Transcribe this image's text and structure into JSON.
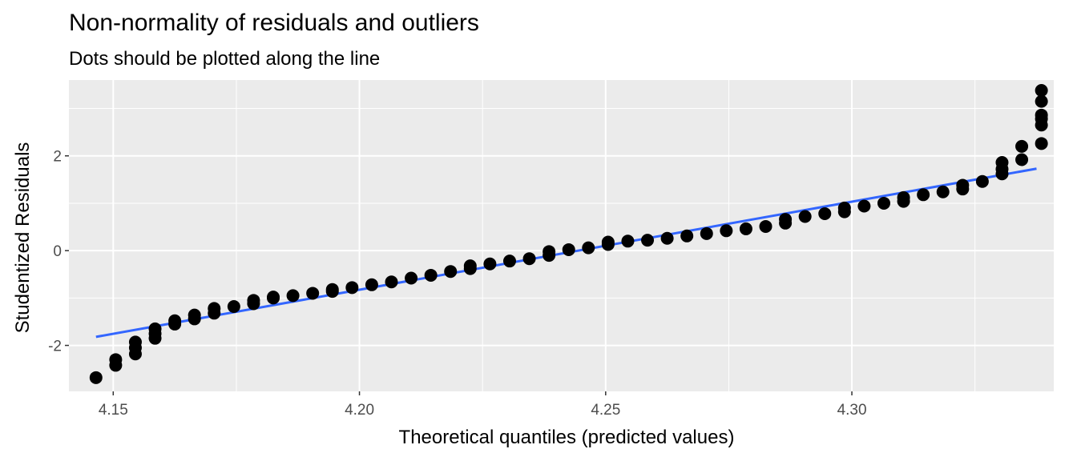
{
  "chart_data": {
    "type": "scatter",
    "title": "Non-normality of residuals and outliers",
    "subtitle": "Dots should be plotted along the line",
    "xlabel": "Theoretical quantiles (predicted values)",
    "ylabel": "Studentized Residuals",
    "xlim": [
      4.141,
      4.341
    ],
    "ylim": [
      -2.97,
      3.6
    ],
    "x_ticks": [
      4.15,
      4.2,
      4.25,
      4.3
    ],
    "x_tick_labels": [
      "4.15",
      "4.20",
      "4.25",
      "4.30"
    ],
    "y_ticks": [
      -2,
      0,
      2
    ],
    "y_tick_labels": [
      "-2",
      "0",
      "2"
    ],
    "grid": true,
    "colors": {
      "panel": "#ebebeb",
      "grid": "#ffffff",
      "points": "#000000",
      "line": "#3366ff"
    },
    "reference_line": {
      "x": [
        4.1465,
        4.3375
      ],
      "y": [
        -1.82,
        1.73
      ]
    },
    "points": {
      "x": [
        4.1465,
        4.1505,
        4.1505,
        4.1545,
        4.1545,
        4.1545,
        4.1585,
        4.1585,
        4.1585,
        4.1625,
        4.1625,
        4.1665,
        4.1665,
        4.1705,
        4.1705,
        4.1745,
        4.1785,
        4.1785,
        4.1825,
        4.1825,
        4.1865,
        4.1905,
        4.1945,
        4.1945,
        4.1985,
        4.2025,
        4.2065,
        4.2105,
        4.2145,
        4.2185,
        4.2225,
        4.2225,
        4.2265,
        4.2305,
        4.2345,
        4.2385,
        4.2385,
        4.2425,
        4.2465,
        4.2505,
        4.2505,
        4.2545,
        4.2585,
        4.2625,
        4.2665,
        4.2705,
        4.2745,
        4.2785,
        4.2825,
        4.2865,
        4.2865,
        4.2905,
        4.2945,
        4.2985,
        4.2985,
        4.3025,
        4.3065,
        4.3105,
        4.3105,
        4.3145,
        4.3185,
        4.3225,
        4.3225,
        4.3265,
        4.3305,
        4.3305,
        4.3305,
        4.3345,
        4.3345,
        4.3385,
        4.3385,
        4.3385,
        4.3385,
        4.3385,
        4.3385
      ],
      "y": [
        -2.68,
        -2.42,
        -2.3,
        -2.18,
        -2.05,
        -1.93,
        -1.85,
        -1.75,
        -1.65,
        -1.55,
        -1.48,
        -1.44,
        -1.36,
        -1.32,
        -1.22,
        -1.18,
        -1.12,
        -1.05,
        -1.0,
        -0.98,
        -0.95,
        -0.9,
        -0.86,
        -0.82,
        -0.78,
        -0.72,
        -0.66,
        -0.58,
        -0.52,
        -0.44,
        -0.38,
        -0.32,
        -0.28,
        -0.22,
        -0.17,
        -0.1,
        -0.02,
        0.02,
        0.06,
        0.13,
        0.18,
        0.2,
        0.22,
        0.26,
        0.31,
        0.36,
        0.42,
        0.46,
        0.51,
        0.58,
        0.66,
        0.72,
        0.78,
        0.82,
        0.9,
        0.94,
        1.0,
        1.04,
        1.12,
        1.18,
        1.24,
        1.3,
        1.38,
        1.46,
        1.62,
        1.72,
        1.86,
        1.92,
        2.2,
        2.26,
        2.65,
        2.78,
        2.86,
        3.15,
        3.38
      ]
    }
  }
}
